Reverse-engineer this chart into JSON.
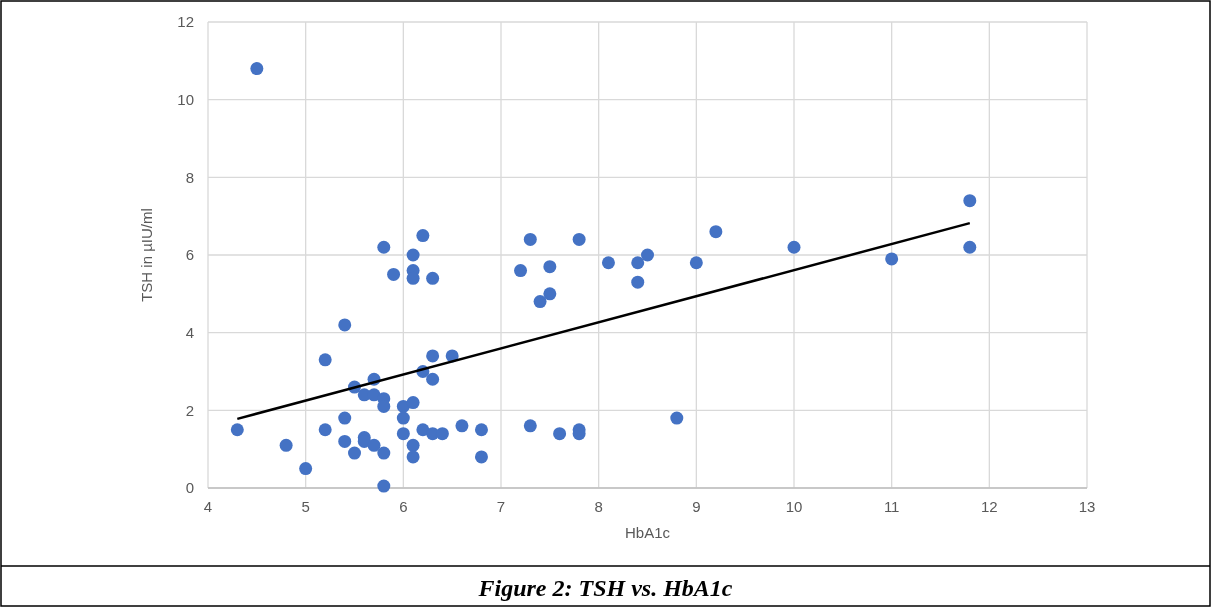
{
  "chart_data": {
    "type": "scatter",
    "title": "Figure 2: TSH vs. HbA1c",
    "xlabel": "HbA1c",
    "ylabel": "TSH in µIU/ml",
    "xlim": [
      4,
      13
    ],
    "xticks": [
      4,
      5,
      6,
      7,
      8,
      9,
      10,
      11,
      12,
      13
    ],
    "ylim": [
      0,
      12
    ],
    "yticks": [
      0,
      2,
      4,
      6,
      8,
      10,
      12
    ],
    "grid": true,
    "marker": "circle",
    "series": [
      {
        "color": "#4472c4",
        "x": [
          4.5,
          4.3,
          4.8,
          5.0,
          5.2,
          5.2,
          5.4,
          5.4,
          5.4,
          5.5,
          5.5,
          5.6,
          5.6,
          5.6,
          5.7,
          5.7,
          5.7,
          5.8,
          5.8,
          5.8,
          5.8,
          5.8,
          5.9,
          6.0,
          6.0,
          6.0,
          6.1,
          6.1,
          6.1,
          6.1,
          6.1,
          6.1,
          6.2,
          6.2,
          6.2,
          6.3,
          6.3,
          6.3,
          6.3,
          6.4,
          6.5,
          6.6,
          6.8,
          6.8,
          7.2,
          7.3,
          7.3,
          7.4,
          7.5,
          7.5,
          7.6,
          7.8,
          7.8,
          7.8,
          8.1,
          8.4,
          8.4,
          8.5,
          8.8,
          9.0,
          9.2,
          10,
          11,
          11.8,
          11.8
        ],
        "values": [
          10.8,
          1.5,
          1.1,
          0.5,
          3.3,
          1.5,
          4.2,
          1.8,
          1.2,
          2.6,
          0.9,
          2.4,
          1.3,
          1.2,
          2.8,
          2.4,
          1.1,
          6.2,
          2.3,
          2.1,
          0.9,
          0.05,
          5.5,
          2.1,
          1.8,
          1.4,
          6.0,
          5.6,
          5.4,
          2.2,
          1.1,
          0.8,
          6.5,
          3.0,
          1.5,
          5.4,
          3.4,
          2.8,
          1.4,
          1.4,
          3.4,
          1.6,
          1.5,
          0.8,
          5.6,
          6.4,
          1.6,
          4.8,
          5.7,
          5.0,
          1.4,
          6.4,
          1.5,
          1.4,
          5.8,
          5.8,
          5.3,
          6.0,
          1.8,
          5.8,
          6.6,
          6.2,
          5.9,
          7.4,
          6.2
        ]
      },
      {
        "type": "line",
        "color": "#000000",
        "x": [
          4.3,
          11.8
        ],
        "values": [
          1.78,
          6.82
        ],
        "marker": "none"
      }
    ]
  }
}
